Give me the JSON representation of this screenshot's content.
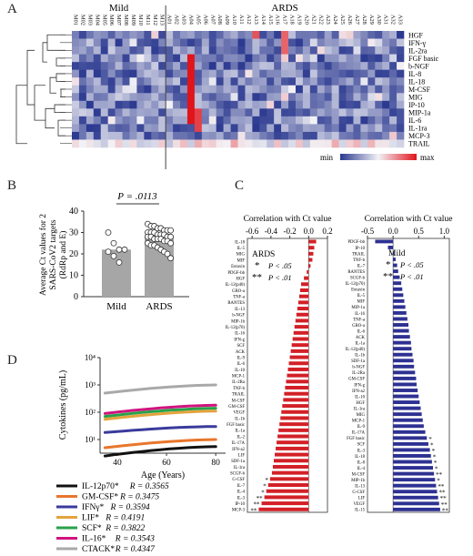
{
  "panels": {
    "a": "A",
    "b": "B",
    "c": "C",
    "d": "D"
  },
  "heatmap": {
    "group_mild": "Mild",
    "group_ards": "ARDS",
    "samples_mild": [
      "M01",
      "M02",
      "M03",
      "M04",
      "M05",
      "M06",
      "M07",
      "M08",
      "M09",
      "M10",
      "M11",
      "M12",
      "M13"
    ],
    "samples_ards": [
      "A01",
      "A02",
      "A03",
      "A04",
      "A05",
      "A06",
      "A07",
      "A08",
      "A09",
      "A10",
      "A11",
      "A12",
      "A13",
      "A14",
      "A15",
      "A16",
      "A17",
      "A18",
      "A19",
      "A20",
      "A21",
      "A22",
      "A23",
      "A24",
      "A25",
      "A26",
      "A27",
      "A28",
      "A29",
      "A30",
      "A31",
      "A32",
      "A33"
    ],
    "cytokines": [
      "HGF",
      "IFN-γ",
      "IL-2ra",
      "FGF basic",
      "b-NGF",
      "IL-8",
      "IL-18",
      "M-CSF",
      "MIG",
      "IP-10",
      "MIP-1a",
      "IL-6",
      "IL-1ra",
      "MCP-3",
      "TRAIL"
    ],
    "legend_min": "min",
    "legend_max": "max",
    "color_min": "#2b3990",
    "color_mid": "#f2f2f6",
    "color_max": "#e0141b"
  },
  "panel_b": {
    "ylabel_line1": "Average Ct values for 2",
    "ylabel_line2": "SARS-CoV2 targets",
    "ylabel_line3": "(RdRp and E)",
    "p_value": "P = .0113",
    "categories": [
      "Mild",
      "ARDS"
    ],
    "yticks": [
      "0",
      "10",
      "20",
      "30",
      "40"
    ],
    "chart_data": {
      "type": "bar",
      "categories": [
        "Mild",
        "ARDS"
      ],
      "values": [
        22,
        28
      ],
      "ylim": [
        0,
        40
      ],
      "points": [
        [
          30,
          25,
          22,
          22,
          21,
          19,
          16
        ],
        [
          34,
          33,
          33,
          32,
          32,
          31,
          31,
          31,
          30,
          30,
          30,
          29,
          29,
          29,
          28,
          28,
          28,
          28,
          27,
          27,
          27,
          26,
          26,
          25,
          25,
          24,
          24,
          23,
          22,
          21,
          20,
          18
        ]
      ]
    }
  },
  "panel_c": {
    "left": {
      "title": "Correlation with Ct value",
      "ticks": [
        "-0.6",
        "-0.4",
        "-0.2",
        "0.0",
        "0.2"
      ],
      "group_label": "ARDS",
      "legend_1": "P < .05",
      "legend_2": "P < .01",
      "labels": [
        "IL-18",
        "IL-5",
        "MIG",
        "MIF",
        "Eotaxin",
        "PDGF-bb",
        "HGF",
        "IL-12(p40)",
        "GRO-a",
        "TNF-a",
        "RANTES",
        "IL-13",
        "b-NGF",
        "MIP-1b",
        "IL-12(p70)",
        "IL-16",
        "IFN-g",
        "SCF",
        "ACK",
        "IL-9",
        "IL-6",
        "IL-10",
        "MCP-1",
        "IL-2Ra",
        "TNF-b",
        "TRAIL",
        "M-CSF",
        "GM-CSF",
        "VEGF",
        "IL-1b",
        "FGF basic",
        "IL-1a",
        "IL-2",
        "IL-17A",
        "IFN-a2",
        "LIF",
        "SDF-1a",
        "IL-1ra",
        "SCGF-b",
        "G-CSF",
        "IL-7",
        "IL-4",
        "IL-3",
        "IP-10",
        "MCP-3"
      ],
      "values": [
        0.08,
        0.06,
        0.05,
        0.04,
        0.02,
        -0.02,
        -0.05,
        -0.08,
        -0.09,
        -0.1,
        -0.11,
        -0.12,
        -0.13,
        -0.14,
        -0.15,
        -0.16,
        -0.17,
        -0.18,
        -0.19,
        -0.2,
        -0.21,
        -0.22,
        -0.23,
        -0.24,
        -0.25,
        -0.26,
        -0.27,
        -0.28,
        -0.29,
        -0.3,
        -0.31,
        -0.32,
        -0.33,
        -0.34,
        -0.35,
        -0.36,
        -0.37,
        -0.38,
        -0.39,
        -0.41,
        -0.43,
        -0.45,
        -0.47,
        -0.5,
        -0.53
      ],
      "sig": [
        "",
        "",
        "",
        "",
        "",
        "",
        "",
        "",
        "",
        "",
        "",
        "",
        "",
        "",
        "",
        "",
        "",
        "",
        "",
        "",
        "",
        "",
        "",
        "",
        "",
        "",
        "",
        "",
        "",
        "",
        "",
        "",
        "",
        "",
        "",
        "",
        "",
        "",
        "",
        "*",
        "*",
        "*",
        "**",
        "**",
        "**"
      ],
      "bar_color": "#d32027"
    },
    "right": {
      "title": "Correlation with Ct value",
      "ticks": [
        "-0.5",
        "0.0",
        "0.5",
        "1.0"
      ],
      "group_label": "Mild",
      "legend_1": "P < .05",
      "legend_2": "P < .01",
      "labels": [
        "PDGF-bb",
        "IP-10",
        "TRAIL",
        "TNF-b",
        "IL-7",
        "RANTES",
        "SCGF-b",
        "IL-12(p70)",
        "Eotaxin",
        "IL-5",
        "MIF",
        "MIP-1a",
        "IL-16",
        "TNF-a",
        "GRO-a",
        "IL-6",
        "ACK",
        "IL-1a",
        "IL-12(p40)",
        "IL-1b",
        "SDF-1a",
        "b-NGF",
        "IL-2Ra",
        "GM-CSF",
        "IFN-g",
        "IFN-a2",
        "IL-10",
        "HGF",
        "IL-1ra",
        "MIG",
        "MCP-1",
        "IL-9",
        "IL-17A",
        "FGF basic",
        "SCF",
        "IL-3",
        "IL-18",
        "IL-8",
        "IL-4",
        "M-CSF",
        "MIP-1b",
        "IL-13",
        "G-CSF",
        "LIF",
        "VEGF",
        "IL-15"
      ],
      "values": [
        -0.35,
        -0.1,
        0.02,
        0.05,
        0.08,
        0.1,
        0.13,
        0.16,
        0.18,
        0.2,
        0.22,
        0.24,
        0.26,
        0.28,
        0.3,
        0.31,
        0.33,
        0.35,
        0.36,
        0.38,
        0.4,
        0.41,
        0.43,
        0.45,
        0.46,
        0.48,
        0.5,
        0.52,
        0.54,
        0.56,
        0.58,
        0.6,
        0.63,
        0.66,
        0.69,
        0.72,
        0.74,
        0.76,
        0.78,
        0.8,
        0.82,
        0.84,
        0.86,
        0.88,
        0.9,
        0.92
      ],
      "sig": [
        "",
        "",
        "",
        "",
        "",
        "",
        "",
        "",
        "",
        "",
        "",
        "",
        "",
        "",
        "",
        "",
        "",
        "",
        "",
        "",
        "",
        "",
        "",
        "",
        "",
        "",
        "",
        "",
        "",
        "",
        "",
        "",
        "",
        "*",
        "*",
        "*",
        "*",
        "*",
        "*",
        "**",
        "*",
        "**",
        "**",
        "**",
        "**",
        "**"
      ],
      "bar_color": "#2e3192"
    }
  },
  "panel_d": {
    "ylabel": "Cytokines (pg/mL)",
    "xlabel": "Age (Years)",
    "yticks": [
      "10¹",
      "10²",
      "10³",
      "10⁴"
    ],
    "xticks": [
      "40",
      "60",
      "80"
    ],
    "chart_data": {
      "type": "line",
      "x": [
        35,
        80
      ],
      "series": [
        {
          "name": "IL-12p70*",
          "r": "R = 0.3565",
          "color": "#111111",
          "values": [
            2.5,
            5.5
          ]
        },
        {
          "name": "GM-CSF*",
          "r": "R = 0.3475",
          "color": "#e8762b",
          "values": [
            5,
            10
          ]
        },
        {
          "name": "IFNγ*",
          "r": "R = 0.3594",
          "color": "#3a3a9c",
          "values": [
            18,
            30
          ]
        },
        {
          "name": "LIF*",
          "r": "R = 0.4191",
          "color": "#e3a33c",
          "values": [
            55,
            110
          ]
        },
        {
          "name": "SCF*",
          "r": "R = 0.3822",
          "color": "#2aa14a",
          "values": [
            70,
            140
          ]
        },
        {
          "name": "IL-16*",
          "r": "R = 0.3543",
          "color": "#d0137f",
          "values": [
            90,
            180
          ]
        },
        {
          "name": "CTACK*",
          "r": "R = 0.4347",
          "color": "#a9a9a9",
          "values": [
            500,
            1000
          ]
        }
      ]
    }
  }
}
